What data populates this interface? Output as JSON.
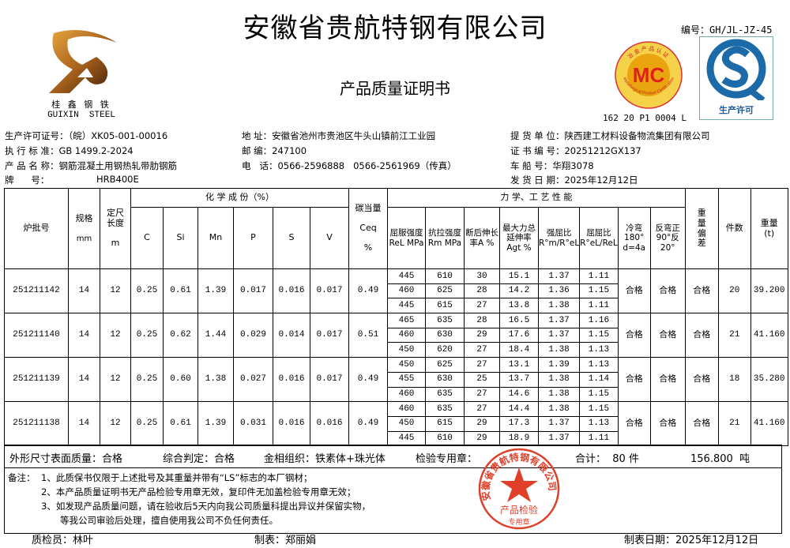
{
  "header": {
    "title": "安徽省贵航特钢有限公司",
    "subtitle": "产品质量证明书",
    "doc_no": "编号：GH/JL-JZ-45",
    "mc_no": "162 20 P1 0004 L",
    "logo_cn": "桂 鑫 钢 铁",
    "logo_en": "GUIXIN  STEEL",
    "mc_badge": {
      "center": "MC",
      "ring_top": "冶金产品认证",
      "ring_bottom": "Metallurgical Product Certification"
    },
    "qs_badge": {
      "label": "生产许可"
    }
  },
  "info": {
    "license": "生产许可证号：（皖）XK05-001-00016",
    "standard": "执 行 标 准：GB 1499.2-2024",
    "product": "产 品 名 称：钢筋混凝土用钢热轧带肋钢筋",
    "brand_label": "牌      号：",
    "brand": "HRB400E",
    "address": "地   址：安徽省池州市贵池区牛头山镇前江工业园",
    "postcode": "邮   编：247100",
    "phone": "电   话：0566-2596888   0566-2561969（传真）",
    "consignee": "提 货 单 位：陕西建工材料设备物流集团有限公司",
    "cert_no": "证 书 编 号：20251212GX137",
    "vehicle": "车   船   号：华翔3078",
    "ship_date": "发 货 日 期：2025年12月12日"
  },
  "table": {
    "headers": {
      "batch": "炉批号",
      "spec": "规格",
      "spec_unit": "mm",
      "length": "定尺长度",
      "length_unit": "m",
      "chem": "化 学 成 份（%）",
      "chem_cols": [
        "C",
        "Si",
        "Mn",
        "P",
        "S",
        "V"
      ],
      "ceq": "碳当量",
      "ceq_sym": "Ceq",
      "ceq_unit": "%",
      "mech": "力 学、工 艺 性 能",
      "mech_cols": [
        "屈服强度ReL MPa",
        "抗拉强度Rm MPa",
        "断后伸长率A %",
        "最大力总延伸率Agt %",
        "强屈比R°m/R°eL",
        "屈屈比R°eL/ReL",
        "冷弯180° d=4a",
        "反弯正90°反20°"
      ],
      "weight_dev": "重量偏差",
      "pieces": "件数",
      "weight": "重量(t)"
    },
    "batches": [
      {
        "id": "251211142",
        "spec": "14",
        "length": "12",
        "chem": [
          "0.25",
          "0.61",
          "1.39",
          "0.017",
          "0.016",
          "0.017"
        ],
        "ceq": "0.49",
        "mech": [
          [
            "445",
            "610",
            "30",
            "15.1",
            "1.37",
            "1.11"
          ],
          [
            "460",
            "625",
            "28",
            "14.2",
            "1.36",
            "1.15"
          ],
          [
            "445",
            "615",
            "27",
            "13.8",
            "1.38",
            "1.11"
          ]
        ],
        "cold": "合格",
        "reverse": "合格",
        "weight_dev": "合格",
        "pieces": "20",
        "weight": "39.200"
      },
      {
        "id": "251211140",
        "spec": "14",
        "length": "12",
        "chem": [
          "0.25",
          "0.62",
          "1.44",
          "0.029",
          "0.014",
          "0.017"
        ],
        "ceq": "0.51",
        "mech": [
          [
            "465",
            "635",
            "28",
            "16.5",
            "1.37",
            "1.16"
          ],
          [
            "460",
            "630",
            "29",
            "17.6",
            "1.37",
            "1.15"
          ],
          [
            "450",
            "620",
            "27",
            "18.4",
            "1.38",
            "1.13"
          ]
        ],
        "cold": "合格",
        "reverse": "合格",
        "weight_dev": "合格",
        "pieces": "21",
        "weight": "41.160"
      },
      {
        "id": "251211139",
        "spec": "14",
        "length": "12",
        "chem": [
          "0.25",
          "0.60",
          "1.38",
          "0.027",
          "0.016",
          "0.017"
        ],
        "ceq": "0.49",
        "mech": [
          [
            "450",
            "625",
            "27",
            "13.1",
            "1.39",
            "1.13"
          ],
          [
            "455",
            "630",
            "25",
            "13.7",
            "1.38",
            "1.14"
          ],
          [
            "460",
            "635",
            "27",
            "14.6",
            "1.38",
            "1.15"
          ]
        ],
        "cold": "合格",
        "reverse": "合格",
        "weight_dev": "合格",
        "pieces": "18",
        "weight": "35.280"
      },
      {
        "id": "251211138",
        "spec": "14",
        "length": "12",
        "chem": [
          "0.25",
          "0.61",
          "1.39",
          "0.031",
          "0.016",
          "0.016"
        ],
        "ceq": "0.49",
        "mech": [
          [
            "460",
            "635",
            "27",
            "14.4",
            "1.38",
            "1.15"
          ],
          [
            "450",
            "615",
            "29",
            "17.3",
            "1.37",
            "1.13"
          ],
          [
            "445",
            "610",
            "29",
            "18.9",
            "1.37",
            "1.11"
          ]
        ],
        "cold": "合格",
        "reverse": "合格",
        "weight_dev": "合格",
        "pieces": "21",
        "weight": "41.160"
      }
    ]
  },
  "summary": {
    "appearance": "外形尺寸表面质量：合格",
    "judgement": "综合判定：合格",
    "metallography": "金相组织：铁素体+珠光体",
    "seal_label": "检验专用章：",
    "total_label": "合计：  80 件",
    "total_weight": "156.800  吨"
  },
  "notes": {
    "prefix": "备注：",
    "items": [
      "1、此质保书仅限于上述批号及其重量并带有“LS”标志的本厂钢材；",
      "2、本产品质量证明书无产品检验专用章无效，复印件无加盖检验专用章无效；",
      "3、如发现产品质量问题，请在验收后5天内向我公司质量科提出异议并保留实物，",
      "等我公司审验后处理，擅自使用我公司不负任何责任。"
    ]
  },
  "stamp": {
    "ring": "安徽省贵航特钢有限公司",
    "line1": "产品检验",
    "line2": "专用章",
    "color": "#e0402a"
  },
  "footer": {
    "inspector": "质检员：林叶",
    "preparer": "制表：郑丽娟",
    "date": "制表日期：2025年12月12日"
  }
}
